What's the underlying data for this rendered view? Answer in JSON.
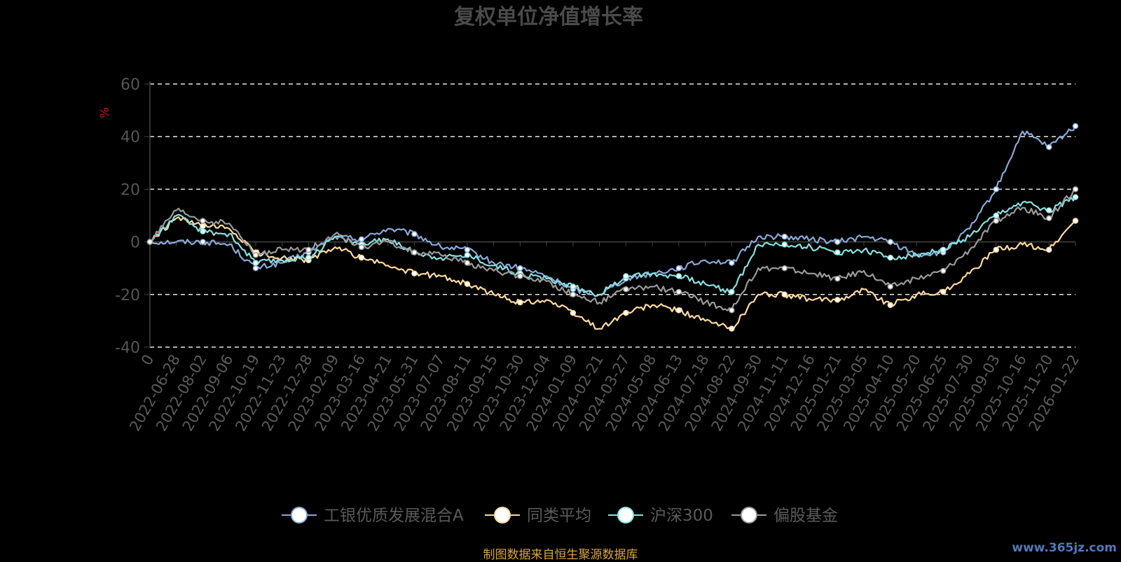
{
  "chart_data": {
    "type": "line",
    "title": "复权单位净值增长率",
    "unit_label": "%",
    "ylim": [
      -40,
      60
    ],
    "yticks": [
      60,
      40,
      20,
      0,
      -20,
      -40
    ],
    "grid": "dashed horizontal",
    "legend_position": "bottom-center",
    "x": [
      "0",
      "2022-06-28",
      "2022-08-02",
      "2022-09-06",
      "2022-10-19",
      "2022-11-23",
      "2022-12-28",
      "2023-02-09",
      "2023-03-16",
      "2023-04-21",
      "2023-05-31",
      "2023-07-07",
      "2023-08-11",
      "2023-09-15",
      "2023-10-30",
      "2023-12-04",
      "2024-01-09",
      "2024-02-21",
      "2024-03-27",
      "2024-05-08",
      "2024-06-13",
      "2024-07-18",
      "2024-08-22",
      "2024-09-30",
      "2024-11-11",
      "2024-12-16",
      "2025-01-21",
      "2025-03-05",
      "2025-04-10",
      "2025-05-20",
      "2025-06-25",
      "2025-07-30",
      "2025-09-03",
      "2025-10-16",
      "2025-11-20",
      "2026-01-22"
    ],
    "series": [
      {
        "name": "工银优质发展混合A",
        "color": "#8aa8d8",
        "values": [
          0,
          0,
          0,
          -1,
          -10,
          -8,
          -4,
          2,
          1,
          5,
          3,
          -2,
          -3,
          -8,
          -10,
          -13,
          -18,
          -20,
          -14,
          -12,
          -10,
          -7,
          -8,
          2,
          2,
          1,
          0,
          2,
          0,
          -5,
          -4,
          5,
          20,
          42,
          36,
          44
        ]
      },
      {
        "name": "同类平均",
        "color": "#ffd9a0",
        "values": [
          0,
          9,
          6,
          5,
          -4,
          -6,
          -7,
          -2,
          -6,
          -9,
          -12,
          -13,
          -16,
          -20,
          -23,
          -22,
          -27,
          -33,
          -27,
          -24,
          -26,
          -30,
          -33,
          -20,
          -20,
          -22,
          -22,
          -18,
          -24,
          -20,
          -19,
          -12,
          -3,
          -1,
          -3,
          8
        ]
      },
      {
        "name": "沪深300",
        "color": "#88e0e0",
        "values": [
          0,
          10,
          4,
          3,
          -8,
          -7,
          -6,
          2,
          -1,
          1,
          -4,
          -6,
          -5,
          -9,
          -12,
          -14,
          -17,
          -20,
          -13,
          -12,
          -13,
          -16,
          -19,
          -1,
          -1,
          -2,
          -4,
          -3,
          -6,
          -5,
          -3,
          2,
          10,
          15,
          12,
          17
        ]
      },
      {
        "name": "偏股基金",
        "color": "#9a9a9a",
        "values": [
          0,
          12,
          8,
          7,
          -5,
          -3,
          -3,
          3,
          -2,
          0,
          -4,
          -5,
          -8,
          -11,
          -13,
          -15,
          -20,
          -23,
          -18,
          -17,
          -19,
          -23,
          -26,
          -10,
          -10,
          -12,
          -14,
          -11,
          -17,
          -14,
          -11,
          -3,
          8,
          13,
          9,
          20
        ]
      }
    ]
  },
  "source_text": "制图数据来自恒生聚源数据库",
  "watermark_text": "www.365jz.com"
}
